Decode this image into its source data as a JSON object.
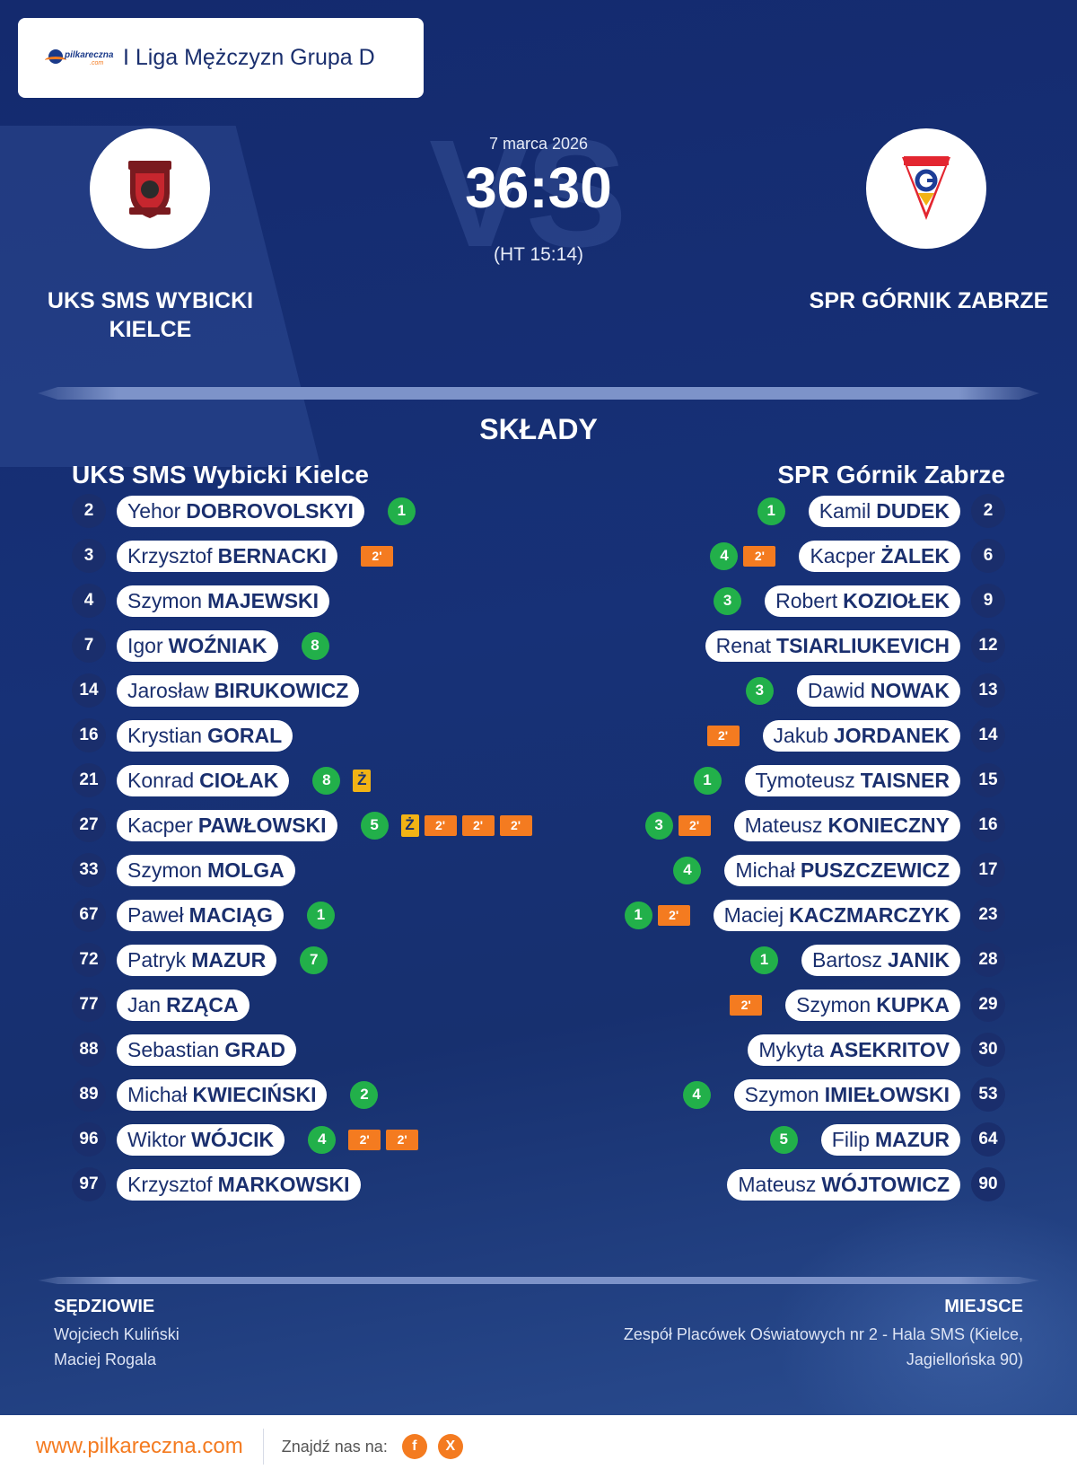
{
  "league": {
    "logo_text": "pilkareczna",
    "logo_sub": ".com",
    "title": "I Liga Mężczyzn Grupa D"
  },
  "match": {
    "date": "7 marca 2026",
    "score": "36:30",
    "halftime": "(HT 15:14)",
    "vs_watermark": "VS",
    "home_team": "UKS SMS WYBICKI KIELCE",
    "away_team": "SPR GÓRNIK ZABRZE"
  },
  "lineups": {
    "title": "SKŁADY",
    "home_title": "UKS SMS Wybicki Kielce",
    "away_title": "SPR Górnik Zabrze",
    "home": [
      {
        "num": "2",
        "first": "Yehor",
        "last": "DOBROVOLSKYI",
        "events": [
          {
            "t": "goal",
            "v": "1"
          }
        ]
      },
      {
        "num": "3",
        "first": "Krzysztof",
        "last": "BERNACKI",
        "events": [
          {
            "t": "susp",
            "v": "2'"
          }
        ]
      },
      {
        "num": "4",
        "first": "Szymon",
        "last": "MAJEWSKI",
        "events": []
      },
      {
        "num": "7",
        "first": "Igor",
        "last": "WOŹNIAK",
        "events": [
          {
            "t": "goal",
            "v": "8"
          }
        ]
      },
      {
        "num": "14",
        "first": "Jarosław",
        "last": "BIRUKOWICZ",
        "events": []
      },
      {
        "num": "16",
        "first": "Krystian",
        "last": "GORAL",
        "events": []
      },
      {
        "num": "21",
        "first": "Konrad",
        "last": "CIOŁAK",
        "events": [
          {
            "t": "goal",
            "v": "8"
          },
          {
            "t": "yellow",
            "v": "Ż"
          }
        ]
      },
      {
        "num": "27",
        "first": "Kacper",
        "last": "PAWŁOWSKI",
        "events": [
          {
            "t": "goal",
            "v": "5"
          },
          {
            "t": "yellow",
            "v": "Ż"
          },
          {
            "t": "susp",
            "v": "2'"
          },
          {
            "t": "susp",
            "v": "2'"
          },
          {
            "t": "susp",
            "v": "2'"
          }
        ]
      },
      {
        "num": "33",
        "first": "Szymon",
        "last": "MOLGA",
        "events": []
      },
      {
        "num": "67",
        "first": "Paweł",
        "last": "MACIĄG",
        "events": [
          {
            "t": "goal",
            "v": "1"
          }
        ]
      },
      {
        "num": "72",
        "first": "Patryk",
        "last": "MAZUR",
        "events": [
          {
            "t": "goal",
            "v": "7"
          }
        ]
      },
      {
        "num": "77",
        "first": "Jan",
        "last": "RZĄCA",
        "events": []
      },
      {
        "num": "88",
        "first": "Sebastian",
        "last": "GRAD",
        "events": []
      },
      {
        "num": "89",
        "first": "Michał",
        "last": "KWIECIŃSKI",
        "events": [
          {
            "t": "goal",
            "v": "2"
          }
        ]
      },
      {
        "num": "96",
        "first": "Wiktor",
        "last": "WÓJCIK",
        "events": [
          {
            "t": "goal",
            "v": "4"
          },
          {
            "t": "susp",
            "v": "2'"
          },
          {
            "t": "susp",
            "v": "2'"
          }
        ]
      },
      {
        "num": "97",
        "first": "Krzysztof",
        "last": "MARKOWSKI",
        "events": []
      }
    ],
    "away": [
      {
        "num": "2",
        "first": "Kamil",
        "last": "DUDEK",
        "events": [
          {
            "t": "goal",
            "v": "1"
          }
        ]
      },
      {
        "num": "6",
        "first": "Kacper",
        "last": "ŻALEK",
        "events": [
          {
            "t": "susp",
            "v": "2'"
          },
          {
            "t": "goal",
            "v": "4"
          }
        ]
      },
      {
        "num": "9",
        "first": "Robert",
        "last": "KOZIOŁEK",
        "events": [
          {
            "t": "goal",
            "v": "3"
          }
        ]
      },
      {
        "num": "12",
        "first": "Renat",
        "last": "TSIARLIUKEVICH",
        "events": []
      },
      {
        "num": "13",
        "first": "Dawid",
        "last": "NOWAK",
        "events": [
          {
            "t": "goal",
            "v": "3"
          }
        ]
      },
      {
        "num": "14",
        "first": "Jakub",
        "last": "JORDANEK",
        "events": [
          {
            "t": "susp",
            "v": "2'"
          }
        ]
      },
      {
        "num": "15",
        "first": "Tymoteusz",
        "last": "TAISNER",
        "events": [
          {
            "t": "goal",
            "v": "1"
          }
        ]
      },
      {
        "num": "16",
        "first": "Mateusz",
        "last": "KONIECZNY",
        "events": [
          {
            "t": "susp",
            "v": "2'"
          },
          {
            "t": "goal",
            "v": "3"
          }
        ]
      },
      {
        "num": "17",
        "first": "Michał",
        "last": "PUSZCZEWICZ",
        "events": [
          {
            "t": "goal",
            "v": "4"
          }
        ]
      },
      {
        "num": "23",
        "first": "Maciej",
        "last": "KACZMARCZYK",
        "events": [
          {
            "t": "susp",
            "v": "2'"
          },
          {
            "t": "goal",
            "v": "1"
          }
        ]
      },
      {
        "num": "28",
        "first": "Bartosz",
        "last": "JANIK",
        "events": [
          {
            "t": "goal",
            "v": "1"
          }
        ]
      },
      {
        "num": "29",
        "first": "Szymon",
        "last": "KUPKA",
        "events": [
          {
            "t": "susp",
            "v": "2'"
          }
        ]
      },
      {
        "num": "30",
        "first": "Mykyta",
        "last": "ASEKRITOV",
        "events": []
      },
      {
        "num": "53",
        "first": "Szymon",
        "last": "IMIEŁOWSKI",
        "events": [
          {
            "t": "goal",
            "v": "4"
          }
        ]
      },
      {
        "num": "64",
        "first": "Filip",
        "last": "MAZUR",
        "events": [
          {
            "t": "goal",
            "v": "5"
          }
        ]
      },
      {
        "num": "90",
        "first": "Mateusz",
        "last": "WÓJTOWICZ",
        "events": []
      }
    ]
  },
  "officials": {
    "label": "SĘDZIOWIE",
    "names": [
      "Wojciech Kuliński",
      "Maciej Rogala"
    ]
  },
  "venue": {
    "label": "MIEJSCE",
    "text": "Zespół Placówek Oświatowych nr 2 - Hala SMS (Kielce, Jagiellońska 90)"
  },
  "footer": {
    "site": "www.pilkareczna.com",
    "find_label": "Znajdź nas na:",
    "social": [
      {
        "icon": "facebook-icon",
        "glyph": "f"
      },
      {
        "icon": "x-icon",
        "glyph": "X"
      }
    ]
  },
  "colors": {
    "background": "#17306f",
    "accent": "#f47b20",
    "goal": "#22b04a",
    "yellow_card": "#f2b315",
    "number_badge": "#1a2e6c"
  }
}
